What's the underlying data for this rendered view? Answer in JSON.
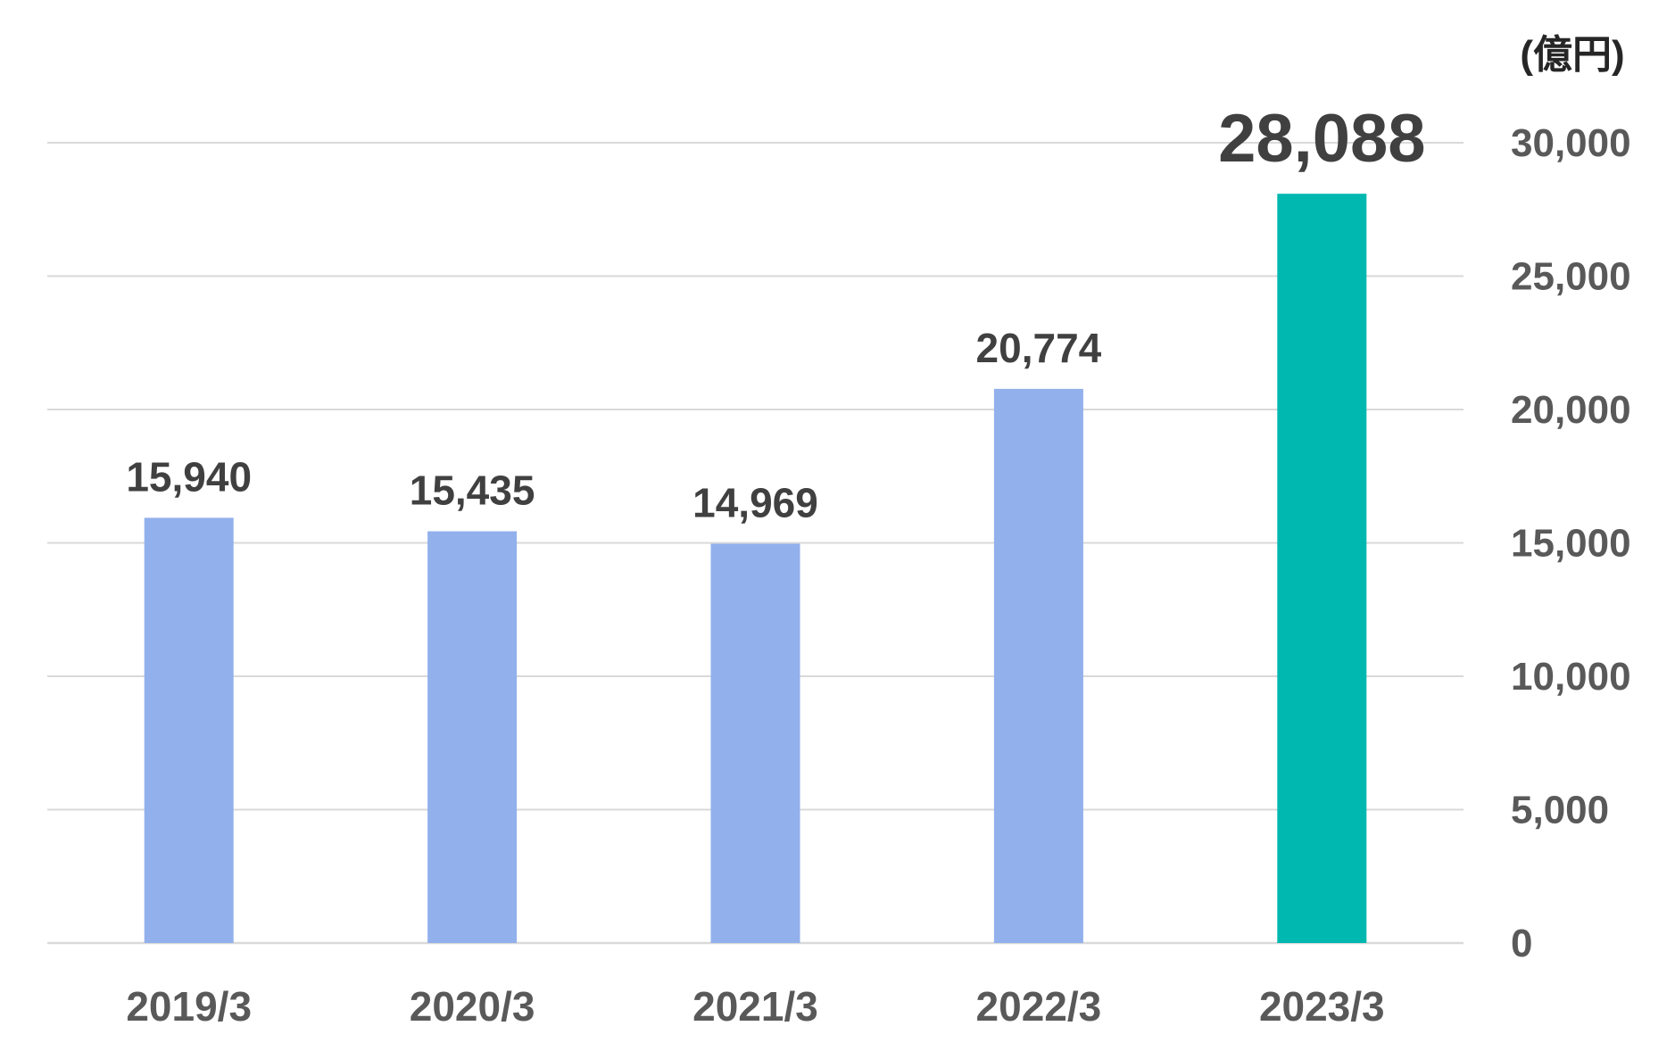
{
  "chart_data": {
    "type": "bar",
    "unit_label": "(億円)",
    "categories": [
      "2019/3",
      "2020/3",
      "2021/3",
      "2022/3",
      "2023/3"
    ],
    "values": [
      15940,
      15435,
      14969,
      20774,
      28088
    ],
    "data_labels": [
      "15,940",
      "15,435",
      "14,969",
      "20,774",
      "28,088"
    ],
    "ylim": [
      0,
      30000
    ],
    "yticks": [
      0,
      5000,
      10000,
      15000,
      20000,
      25000,
      30000
    ],
    "ytick_labels": [
      "0",
      "5,000",
      "10,000",
      "15,000",
      "20,000",
      "25,000",
      "30,000"
    ],
    "y_axis_side": "right",
    "grid": true,
    "highlight_index": 4,
    "colors": {
      "bar": "#92b0ec",
      "bar_highlight": "#00b8b0",
      "label_highlight": "#f5a31a",
      "label": "#404040",
      "tick": "#595959",
      "grid": "#d9d9d9"
    }
  }
}
